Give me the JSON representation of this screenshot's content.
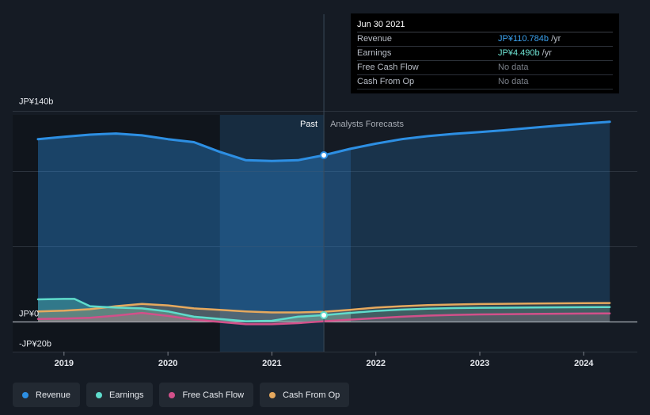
{
  "tooltip": {
    "date": "Jun 30 2021",
    "rows": [
      {
        "label": "Revenue",
        "value": "JP¥110.784b",
        "unit": " /yr"
      },
      {
        "label": "Earnings",
        "value": "JP¥4.490b",
        "unit": " /yr"
      },
      {
        "label": "Free Cash Flow",
        "value": "No data",
        "unit": ""
      },
      {
        "label": "Cash From Op",
        "value": "No data",
        "unit": ""
      }
    ]
  },
  "section_labels": {
    "past": "Past",
    "forecast": "Analysts Forecasts"
  },
  "legend": [
    {
      "label": "Revenue",
      "color": "#2d8fe3"
    },
    {
      "label": "Earnings",
      "color": "#5fdccc"
    },
    {
      "label": "Free Cash Flow",
      "color": "#d2508a"
    },
    {
      "label": "Cash From Op",
      "color": "#e6a95e"
    }
  ],
  "chart_data": {
    "type": "line",
    "y_unit": "JP¥ billions",
    "ylim": [
      -20,
      140
    ],
    "y_tick_labels": [
      {
        "value": 140,
        "label": "JP¥140b"
      },
      {
        "value": 0,
        "label": "JP¥0"
      },
      {
        "value": -20,
        "label": "-JP¥20b"
      }
    ],
    "xlim": [
      2018.5,
      2024.25
    ],
    "x_ticks": [
      2019,
      2020,
      2021,
      2022,
      2023,
      2024
    ],
    "divider_x": 2021.5,
    "past_shade_start": 2020.5,
    "grid": true,
    "highlight": {
      "x": 2021.5,
      "series": [
        "Revenue",
        "Earnings"
      ]
    },
    "series": [
      {
        "name": "Revenue",
        "color": "#2d8fe3",
        "fill": true,
        "points": [
          [
            2018.75,
            121.5
          ],
          [
            2019.0,
            123.0
          ],
          [
            2019.25,
            124.5
          ],
          [
            2019.5,
            125.2
          ],
          [
            2019.75,
            124.0
          ],
          [
            2020.0,
            121.5
          ],
          [
            2020.25,
            119.5
          ],
          [
            2020.5,
            113.0
          ],
          [
            2020.75,
            107.5
          ],
          [
            2021.0,
            107.0
          ],
          [
            2021.25,
            107.5
          ],
          [
            2021.5,
            110.8
          ],
          [
            2021.75,
            115.0
          ],
          [
            2022.0,
            118.5
          ],
          [
            2022.25,
            121.5
          ],
          [
            2022.5,
            123.5
          ],
          [
            2022.75,
            125.0
          ],
          [
            2023.0,
            126.2
          ],
          [
            2023.25,
            127.5
          ],
          [
            2023.5,
            129.0
          ],
          [
            2023.75,
            130.5
          ],
          [
            2024.0,
            131.8
          ],
          [
            2024.25,
            133.0
          ]
        ]
      },
      {
        "name": "Earnings",
        "color": "#5fdccc",
        "fill": true,
        "points": [
          [
            2018.75,
            15.0
          ],
          [
            2019.0,
            15.3
          ],
          [
            2019.1,
            15.3
          ],
          [
            2019.25,
            10.5
          ],
          [
            2019.5,
            9.5
          ],
          [
            2019.75,
            9.0
          ],
          [
            2020.0,
            7.0
          ],
          [
            2020.25,
            3.5
          ],
          [
            2020.5,
            2.0
          ],
          [
            2020.75,
            0.5
          ],
          [
            2021.0,
            0.8
          ],
          [
            2021.25,
            3.5
          ],
          [
            2021.5,
            4.5
          ],
          [
            2021.75,
            6.0
          ],
          [
            2022.0,
            7.3
          ],
          [
            2022.25,
            8.2
          ],
          [
            2022.5,
            8.8
          ],
          [
            2022.75,
            9.2
          ],
          [
            2023.0,
            9.4
          ],
          [
            2023.5,
            9.6
          ],
          [
            2024.0,
            9.8
          ],
          [
            2024.25,
            9.9
          ]
        ]
      },
      {
        "name": "Free Cash Flow",
        "color": "#d2508a",
        "fill": true,
        "points": [
          [
            2018.75,
            2.0
          ],
          [
            2019.0,
            2.2
          ],
          [
            2019.25,
            2.8
          ],
          [
            2019.5,
            4.2
          ],
          [
            2019.75,
            6.0
          ],
          [
            2020.0,
            4.0
          ],
          [
            2020.25,
            1.5
          ],
          [
            2020.5,
            0.0
          ],
          [
            2020.75,
            -1.5
          ],
          [
            2021.0,
            -1.5
          ],
          [
            2021.25,
            -0.8
          ],
          [
            2021.5,
            0.5
          ],
          [
            2021.75,
            1.5
          ],
          [
            2022.0,
            2.5
          ],
          [
            2022.25,
            3.5
          ],
          [
            2022.5,
            4.2
          ],
          [
            2022.75,
            4.7
          ],
          [
            2023.0,
            5.0
          ],
          [
            2023.5,
            5.3
          ],
          [
            2024.0,
            5.6
          ],
          [
            2024.25,
            5.7
          ]
        ]
      },
      {
        "name": "Cash From Op",
        "color": "#e6a95e",
        "fill": true,
        "points": [
          [
            2018.75,
            7.0
          ],
          [
            2019.0,
            7.5
          ],
          [
            2019.25,
            8.5
          ],
          [
            2019.5,
            10.5
          ],
          [
            2019.75,
            12.0
          ],
          [
            2020.0,
            11.0
          ],
          [
            2020.25,
            9.0
          ],
          [
            2020.5,
            8.0
          ],
          [
            2020.75,
            7.0
          ],
          [
            2021.0,
            6.3
          ],
          [
            2021.25,
            6.3
          ],
          [
            2021.5,
            6.8
          ],
          [
            2021.75,
            8.0
          ],
          [
            2022.0,
            9.5
          ],
          [
            2022.25,
            10.5
          ],
          [
            2022.5,
            11.2
          ],
          [
            2022.75,
            11.6
          ],
          [
            2023.0,
            11.9
          ],
          [
            2023.5,
            12.2
          ],
          [
            2024.0,
            12.5
          ],
          [
            2024.25,
            12.6
          ]
        ]
      }
    ]
  }
}
